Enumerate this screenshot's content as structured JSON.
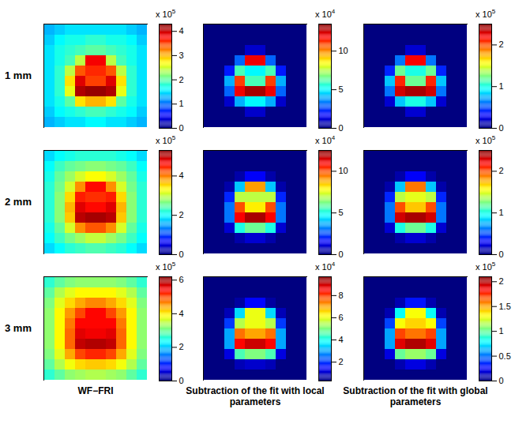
{
  "row_labels": [
    "1 mm",
    "2 mm",
    "3 mm"
  ],
  "column_labels": [
    "WF−FRI",
    "Subtraction of the fit with local parameters",
    "Subtraction of the fit with global parameters"
  ],
  "chart_data": [
    {
      "type": "heatmap",
      "color": "jet",
      "tick_labels": false,
      "colorbar": {
        "range": [
          0,
          4.3
        ],
        "ticks": [
          0,
          1,
          2,
          3,
          4
        ],
        "multiplier": "x 10",
        "exponent": "5"
      },
      "cells": [
        [
          1.3,
          1.4,
          1.5,
          1.5,
          1.5,
          1.5,
          1.5,
          1.5,
          1.4,
          1.3
        ],
        [
          1.4,
          1.6,
          1.7,
          1.7,
          1.8,
          1.8,
          1.7,
          1.7,
          1.6,
          1.4
        ],
        [
          1.5,
          1.7,
          1.8,
          1.9,
          2.0,
          2.0,
          1.9,
          1.8,
          1.7,
          1.5
        ],
        [
          1.5,
          1.7,
          1.9,
          2.4,
          3.8,
          3.8,
          2.4,
          1.9,
          1.7,
          1.5
        ],
        [
          1.5,
          1.8,
          2.4,
          3.4,
          3.6,
          3.6,
          3.4,
          2.4,
          1.8,
          1.5
        ],
        [
          1.5,
          1.8,
          2.8,
          3.9,
          3.5,
          3.5,
          3.9,
          2.8,
          1.8,
          1.5
        ],
        [
          1.5,
          1.8,
          2.6,
          4.1,
          4.2,
          4.2,
          4.1,
          2.6,
          1.8,
          1.5
        ],
        [
          1.5,
          1.7,
          2.0,
          2.8,
          3.0,
          3.0,
          2.8,
          2.0,
          1.7,
          1.5
        ],
        [
          1.4,
          1.6,
          1.7,
          1.8,
          1.9,
          1.9,
          1.8,
          1.7,
          1.6,
          1.4
        ],
        [
          1.3,
          1.4,
          1.5,
          1.5,
          1.6,
          1.6,
          1.5,
          1.5,
          1.4,
          1.3
        ]
      ]
    },
    {
      "type": "heatmap",
      "color": "jet",
      "tick_labels": false,
      "colorbar": {
        "range": [
          0,
          13.5
        ],
        "ticks": [
          0,
          5,
          10
        ],
        "multiplier": "x 10",
        "exponent": "4"
      },
      "cells": [
        [
          0,
          0,
          0,
          0,
          0,
          0,
          0,
          0,
          0,
          0
        ],
        [
          0,
          0,
          0,
          0,
          0,
          0,
          0,
          0,
          0,
          0
        ],
        [
          0,
          0,
          0,
          0,
          1,
          1,
          0,
          0,
          0,
          0
        ],
        [
          0,
          0,
          0,
          3,
          12,
          12,
          3,
          0,
          0,
          0
        ],
        [
          0,
          0,
          2,
          6,
          5,
          5,
          6,
          2,
          0,
          0
        ],
        [
          0,
          0,
          4,
          11,
          6,
          6,
          11,
          4,
          0,
          0
        ],
        [
          0,
          0,
          3,
          12,
          13,
          13,
          12,
          3,
          0,
          0
        ],
        [
          0,
          0,
          1,
          4,
          5,
          5,
          4,
          1,
          0,
          0
        ],
        [
          0,
          0,
          0,
          0,
          1,
          1,
          0,
          0,
          0,
          0
        ],
        [
          0,
          0,
          0,
          0,
          0,
          0,
          0,
          0,
          0,
          0
        ]
      ]
    },
    {
      "type": "heatmap",
      "color": "jet",
      "tick_labels": false,
      "colorbar": {
        "range": [
          0,
          2.5
        ],
        "ticks": [
          0,
          1,
          2
        ],
        "multiplier": "x 10",
        "exponent": "5"
      },
      "cells": [
        [
          0,
          0,
          0,
          0,
          0,
          0,
          0,
          0,
          0,
          0
        ],
        [
          0,
          0,
          0,
          0,
          0,
          0,
          0,
          0,
          0,
          0
        ],
        [
          0,
          0,
          0,
          0,
          0.2,
          0.2,
          0,
          0,
          0,
          0
        ],
        [
          0,
          0,
          0,
          0.6,
          2.2,
          2.2,
          0.6,
          0,
          0,
          0
        ],
        [
          0,
          0,
          0.4,
          1.2,
          1.0,
          1.0,
          1.2,
          0.4,
          0,
          0
        ],
        [
          0,
          0,
          0.8,
          2.1,
          1.2,
          1.2,
          2.1,
          0.8,
          0,
          0
        ],
        [
          0,
          0,
          0.6,
          2.3,
          2.4,
          2.4,
          2.3,
          0.6,
          0,
          0
        ],
        [
          0,
          0,
          0.2,
          0.8,
          1.0,
          1.0,
          0.8,
          0.2,
          0,
          0
        ],
        [
          0,
          0,
          0,
          0,
          0.2,
          0.2,
          0,
          0,
          0,
          0
        ],
        [
          0,
          0,
          0,
          0,
          0,
          0,
          0,
          0,
          0,
          0
        ]
      ]
    },
    {
      "type": "heatmap",
      "color": "jet",
      "tick_labels": false,
      "colorbar": {
        "range": [
          0,
          5.3
        ],
        "ticks": [
          0,
          2,
          4
        ],
        "multiplier": "x 10",
        "exponent": "5"
      },
      "cells": [
        [
          1.8,
          2.0,
          2.1,
          2.2,
          2.2,
          2.2,
          2.2,
          2.1,
          2.0,
          1.8
        ],
        [
          2.0,
          2.3,
          2.5,
          2.6,
          2.7,
          2.7,
          2.6,
          2.5,
          2.3,
          2.0
        ],
        [
          2.1,
          2.5,
          2.8,
          3.1,
          3.3,
          3.3,
          3.1,
          2.8,
          2.5,
          2.1
        ],
        [
          2.2,
          2.6,
          3.1,
          3.9,
          4.6,
          4.6,
          3.9,
          3.1,
          2.6,
          2.2
        ],
        [
          2.2,
          2.7,
          3.5,
          4.5,
          4.4,
          4.4,
          4.5,
          3.5,
          2.7,
          2.2
        ],
        [
          2.2,
          2.7,
          3.7,
          4.8,
          4.6,
          4.6,
          4.8,
          3.7,
          2.7,
          2.2
        ],
        [
          2.2,
          2.7,
          3.6,
          5.0,
          5.1,
          5.1,
          5.0,
          3.6,
          2.7,
          2.2
        ],
        [
          2.1,
          2.5,
          3.1,
          3.9,
          4.2,
          4.2,
          3.9,
          3.1,
          2.5,
          2.1
        ],
        [
          2.0,
          2.3,
          2.6,
          2.8,
          3.0,
          3.0,
          2.8,
          2.6,
          2.3,
          2.0
        ],
        [
          1.8,
          2.0,
          2.2,
          2.3,
          2.4,
          2.4,
          2.3,
          2.2,
          2.0,
          1.8
        ]
      ]
    },
    {
      "type": "heatmap",
      "color": "jet",
      "tick_labels": false,
      "colorbar": {
        "range": [
          0,
          12.5
        ],
        "ticks": [
          0,
          5,
          10
        ],
        "multiplier": "x 10",
        "exponent": "4"
      },
      "cells": [
        [
          0,
          0,
          0,
          0,
          0,
          0,
          0,
          0,
          0,
          0
        ],
        [
          0,
          0,
          0,
          0,
          0,
          0,
          0,
          0,
          0,
          0
        ],
        [
          0,
          0,
          0,
          0.5,
          1.5,
          1.5,
          0.5,
          0,
          0,
          0
        ],
        [
          0,
          0,
          0.5,
          4,
          9,
          9,
          4,
          0.5,
          0,
          0
        ],
        [
          0,
          0,
          2,
          7,
          7,
          7,
          7,
          2,
          0,
          0
        ],
        [
          0,
          0,
          3,
          10,
          8,
          8,
          10,
          3,
          0,
          0
        ],
        [
          0,
          0,
          3,
          11,
          12,
          12,
          11,
          3,
          0,
          0
        ],
        [
          0,
          0,
          1,
          5,
          6,
          6,
          5,
          1,
          0,
          0
        ],
        [
          0,
          0,
          0,
          0.5,
          1,
          1,
          0.5,
          0,
          0,
          0
        ],
        [
          0,
          0,
          0,
          0,
          0,
          0,
          0,
          0,
          0,
          0
        ]
      ]
    },
    {
      "type": "heatmap",
      "color": "jet",
      "tick_labels": false,
      "colorbar": {
        "range": [
          0,
          2.5
        ],
        "ticks": [
          0,
          1,
          2
        ],
        "multiplier": "x 10",
        "exponent": "5"
      },
      "cells": [
        [
          0,
          0,
          0,
          0,
          0,
          0,
          0,
          0,
          0,
          0
        ],
        [
          0,
          0,
          0,
          0,
          0,
          0,
          0,
          0,
          0,
          0
        ],
        [
          0,
          0,
          0,
          0.1,
          0.3,
          0.3,
          0.1,
          0,
          0,
          0
        ],
        [
          0,
          0,
          0.1,
          0.8,
          1.9,
          1.9,
          0.8,
          0.1,
          0,
          0
        ],
        [
          0,
          0,
          0.4,
          1.4,
          1.5,
          1.5,
          1.4,
          0.4,
          0,
          0
        ],
        [
          0,
          0,
          0.6,
          2.0,
          1.7,
          1.7,
          2.0,
          0.6,
          0,
          0
        ],
        [
          0,
          0,
          0.6,
          2.3,
          2.4,
          2.4,
          2.3,
          0.6,
          0,
          0
        ],
        [
          0,
          0,
          0.2,
          1.0,
          1.2,
          1.2,
          1.0,
          0.2,
          0,
          0
        ],
        [
          0,
          0,
          0,
          0.1,
          0.2,
          0.2,
          0.1,
          0,
          0,
          0
        ],
        [
          0,
          0,
          0,
          0,
          0,
          0,
          0,
          0,
          0,
          0
        ]
      ]
    },
    {
      "type": "heatmap",
      "color": "jet",
      "tick_labels": false,
      "colorbar": {
        "range": [
          0,
          6.2
        ],
        "ticks": [
          0,
          2,
          4,
          6
        ],
        "multiplier": "x 10",
        "exponent": "5"
      },
      "cells": [
        [
          2.6,
          2.9,
          3.1,
          3.2,
          3.2,
          3.2,
          3.2,
          3.1,
          2.9,
          2.6
        ],
        [
          2.9,
          3.4,
          3.7,
          3.9,
          3.9,
          3.9,
          3.9,
          3.7,
          3.4,
          2.9
        ],
        [
          3.1,
          3.7,
          4.1,
          4.4,
          4.6,
          4.6,
          4.4,
          4.1,
          3.7,
          3.1
        ],
        [
          3.2,
          3.9,
          4.5,
          5.0,
          5.4,
          5.4,
          5.0,
          4.5,
          3.9,
          3.2
        ],
        [
          3.2,
          3.9,
          4.7,
          5.4,
          5.4,
          5.4,
          5.4,
          4.7,
          3.9,
          3.2
        ],
        [
          3.2,
          3.9,
          4.8,
          5.6,
          5.5,
          5.5,
          5.6,
          4.8,
          3.9,
          3.2
        ],
        [
          3.2,
          3.9,
          4.8,
          5.8,
          5.9,
          5.9,
          5.8,
          4.8,
          3.9,
          3.2
        ],
        [
          3.1,
          3.7,
          4.4,
          5.0,
          5.2,
          5.2,
          5.0,
          4.4,
          3.7,
          3.1
        ],
        [
          2.9,
          3.4,
          3.8,
          4.1,
          4.2,
          4.2,
          4.1,
          3.8,
          3.4,
          2.9
        ],
        [
          2.6,
          2.9,
          3.2,
          3.3,
          3.4,
          3.4,
          3.3,
          3.2,
          2.9,
          2.6
        ]
      ]
    },
    {
      "type": "heatmap",
      "color": "jet",
      "tick_labels": false,
      "colorbar": {
        "range": [
          0.3,
          9.7
        ],
        "ticks": [
          2,
          4,
          6,
          8
        ],
        "multiplier": "x 10",
        "exponent": "4"
      },
      "cells": [
        [
          0.3,
          0.3,
          0.3,
          0.3,
          0.3,
          0.3,
          0.3,
          0.3,
          0.3,
          0.3
        ],
        [
          0.3,
          0.3,
          0.3,
          0.3,
          0.3,
          0.3,
          0.3,
          0.3,
          0.3,
          0.3
        ],
        [
          0.3,
          0.3,
          0.3,
          0.6,
          1.5,
          1.5,
          0.6,
          0.3,
          0.3,
          0.3
        ],
        [
          0.3,
          0.3,
          0.8,
          3.5,
          6,
          6,
          3.5,
          0.8,
          0.3,
          0.3
        ],
        [
          0.3,
          0.3,
          2,
          5.5,
          6,
          6,
          5.5,
          2,
          0.3,
          0.3
        ],
        [
          0.3,
          0.3,
          3,
          7.5,
          7,
          7,
          7.5,
          3,
          0.3,
          0.3
        ],
        [
          0.3,
          0.3,
          3,
          8.5,
          9,
          9,
          8.5,
          3,
          0.3,
          0.3
        ],
        [
          0.3,
          0.3,
          1.2,
          4.5,
          5,
          5,
          4.5,
          1.2,
          0.3,
          0.3
        ],
        [
          0.3,
          0.3,
          0.3,
          0.8,
          1,
          1,
          0.8,
          0.3,
          0.3,
          0.3
        ],
        [
          0.3,
          0.3,
          0.3,
          0.3,
          0.3,
          0.3,
          0.3,
          0.3,
          0.3,
          0.3
        ]
      ]
    },
    {
      "type": "heatmap",
      "color": "jet",
      "tick_labels": false,
      "colorbar": {
        "range": [
          0,
          2.1
        ],
        "ticks": [
          0,
          0.5,
          1,
          1.5,
          2
        ],
        "multiplier": "x 10",
        "exponent": "5"
      },
      "cells": [
        [
          0,
          0,
          0,
          0,
          0,
          0,
          0,
          0,
          0,
          0
        ],
        [
          0,
          0,
          0,
          0,
          0,
          0,
          0,
          0,
          0,
          0
        ],
        [
          0,
          0,
          0,
          0.1,
          0.3,
          0.3,
          0.1,
          0,
          0,
          0
        ],
        [
          0,
          0,
          0.1,
          0.8,
          1.3,
          1.3,
          0.8,
          0.1,
          0,
          0
        ],
        [
          0,
          0,
          0.4,
          1.3,
          1.4,
          1.4,
          1.3,
          0.4,
          0,
          0
        ],
        [
          0,
          0,
          0.6,
          1.7,
          1.6,
          1.6,
          1.7,
          0.6,
          0,
          0
        ],
        [
          0,
          0,
          0.6,
          1.9,
          2.0,
          2.0,
          1.9,
          0.6,
          0,
          0
        ],
        [
          0,
          0,
          0.2,
          1.0,
          1.1,
          1.1,
          1.0,
          0.2,
          0,
          0
        ],
        [
          0,
          0,
          0,
          0.1,
          0.2,
          0.2,
          0.1,
          0,
          0,
          0
        ],
        [
          0,
          0,
          0,
          0,
          0,
          0,
          0,
          0,
          0,
          0
        ]
      ]
    }
  ]
}
